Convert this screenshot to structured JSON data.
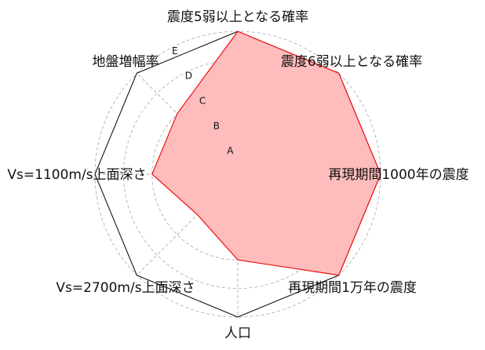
{
  "chart_data": {
    "type": "radar",
    "axes": [
      "震度5弱以上となる確率",
      "震度6弱以上となる確率",
      "再現期間1000年の震度",
      "再現期間1万年の震度",
      "人口",
      "Vs=2700m/s上面深さ",
      "Vs=1100m/s上面深さ",
      "地盤増幅率"
    ],
    "levels": [
      "A",
      "B",
      "C",
      "D",
      "E"
    ],
    "values": [
      5,
      5,
      5,
      5,
      3,
      2,
      3,
      3
    ],
    "max": 5,
    "grid": true,
    "fill_color": "#ffbcbc",
    "line_color": "#ee1111",
    "frame_color": "#000000",
    "grid_color": "#b0b0b0"
  }
}
